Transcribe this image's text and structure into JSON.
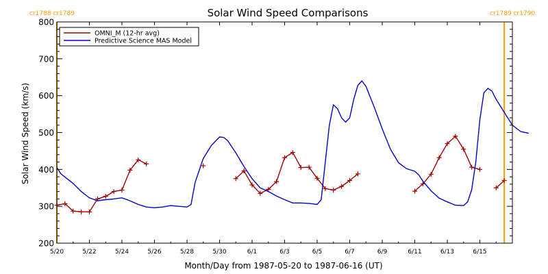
{
  "chart_data": {
    "type": "line",
    "title": "Solar Wind Speed Comparisons",
    "xlabel": "Month/Day from 1987-05-20 to 1987-06-16 (UT)",
    "ylabel": "Solar Wind Speed (km/s)",
    "x_unit": "date",
    "xlim": [
      "1987-05-20",
      "1987-06-17"
    ],
    "ylim": [
      200,
      800
    ],
    "x_ticks": [
      {
        "label": "5/20",
        "date": "1987-05-20"
      },
      {
        "label": "5/22",
        "date": "1987-05-22"
      },
      {
        "label": "5/24",
        "date": "1987-05-24"
      },
      {
        "label": "5/26",
        "date": "1987-05-26"
      },
      {
        "label": "5/28",
        "date": "1987-05-28"
      },
      {
        "label": "5/30",
        "date": "1987-05-30"
      },
      {
        "label": "6/1",
        "date": "1987-06-01"
      },
      {
        "label": "6/3",
        "date": "1987-06-03"
      },
      {
        "label": "6/5",
        "date": "1987-06-05"
      },
      {
        "label": "6/7",
        "date": "1987-06-07"
      },
      {
        "label": "6/9",
        "date": "1987-06-09"
      },
      {
        "label": "6/11",
        "date": "1987-06-11"
      },
      {
        "label": "6/13",
        "date": "1987-06-13"
      },
      {
        "label": "6/15",
        "date": "1987-06-15"
      }
    ],
    "y_ticks": [
      200,
      300,
      400,
      500,
      600,
      700,
      800
    ],
    "legend_position": "top-left",
    "grid": false,
    "carrington_markers": [
      {
        "date": "1987-05-20T00:00",
        "label": "cr1788 cr1789",
        "color": "#ff9900"
      },
      {
        "date": "1987-06-16T12:00",
        "label": "cr1789 cr1790",
        "color": "#ff9900"
      }
    ],
    "series": [
      {
        "name": "OMNI_M (12-hr avg)",
        "color": "#a00000",
        "style": "line-with-plus-markers",
        "segments": [
          [
            [
              "1987-05-20T00:00",
              303
            ],
            [
              "1987-05-20T12:00",
              307
            ],
            [
              "1987-05-21T00:00",
              287
            ],
            [
              "1987-05-21T12:00",
              285
            ],
            [
              "1987-05-22T00:00",
              285
            ],
            [
              "1987-05-22T12:00",
              320
            ],
            [
              "1987-05-23T00:00",
              327
            ],
            [
              "1987-05-23T12:00",
              340
            ],
            [
              "1987-05-24T00:00",
              344
            ],
            [
              "1987-05-24T12:00",
              398
            ],
            [
              "1987-05-25T00:00",
              426
            ],
            [
              "1987-05-25T12:00",
              415
            ]
          ],
          [
            [
              "1987-05-29T00:00",
              410
            ]
          ],
          [
            [
              "1987-05-31T00:00",
              375
            ],
            [
              "1987-05-31T12:00",
              396
            ],
            [
              "1987-06-01T00:00",
              358
            ],
            [
              "1987-06-01T12:00",
              335
            ],
            [
              "1987-06-02T00:00",
              346
            ],
            [
              "1987-06-02T12:00",
              367
            ],
            [
              "1987-06-03T00:00",
              432
            ],
            [
              "1987-06-03T12:00",
              446
            ],
            [
              "1987-06-04T00:00",
              405
            ],
            [
              "1987-06-04T12:00",
              406
            ],
            [
              "1987-06-05T00:00",
              376
            ],
            [
              "1987-06-05T12:00",
              348
            ],
            [
              "1987-06-06T00:00",
              344
            ],
            [
              "1987-06-06T12:00",
              354
            ],
            [
              "1987-06-07T00:00",
              370
            ],
            [
              "1987-06-07T12:00",
              388
            ]
          ],
          [
            [
              "1987-06-11T00:00",
              341
            ],
            [
              "1987-06-11T12:00",
              361
            ],
            [
              "1987-06-12T00:00",
              387
            ],
            [
              "1987-06-12T12:00",
              432
            ],
            [
              "1987-06-13T00:00",
              470
            ],
            [
              "1987-06-13T12:00",
              490
            ],
            [
              "1987-06-14T00:00",
              455
            ],
            [
              "1987-06-14T12:00",
              406
            ],
            [
              "1987-06-15T00:00",
              400
            ]
          ],
          [
            [
              "1987-06-16T00:00",
              350
            ],
            [
              "1987-06-16T12:00",
              370
            ]
          ]
        ]
      },
      {
        "name": "Predictive Science MAS Model",
        "color": "#0000cc",
        "style": "line",
        "segments": [
          [
            [
              "1987-05-20T00:00",
              405
            ],
            [
              "1987-05-20T06:00",
              388
            ],
            [
              "1987-05-21T00:00",
              362
            ],
            [
              "1987-05-21T12:00",
              340
            ],
            [
              "1987-05-22T00:00",
              323
            ],
            [
              "1987-05-22T12:00",
              315
            ],
            [
              "1987-05-23T00:00",
              318
            ],
            [
              "1987-05-23T12:00",
              320
            ],
            [
              "1987-05-24T00:00",
              323
            ],
            [
              "1987-05-24T12:00",
              315
            ],
            [
              "1987-05-25T00:00",
              305
            ],
            [
              "1987-05-25T12:00",
              298
            ],
            [
              "1987-05-26T00:00",
              296
            ],
            [
              "1987-05-26T12:00",
              298
            ],
            [
              "1987-05-27T00:00",
              302
            ],
            [
              "1987-05-27T12:00",
              300
            ],
            [
              "1987-05-28T00:00",
              298
            ],
            [
              "1987-05-28T06:00",
              305
            ],
            [
              "1987-05-28T12:00",
              365
            ],
            [
              "1987-05-29T00:00",
              430
            ],
            [
              "1987-05-29T12:00",
              465
            ],
            [
              "1987-05-30T00:00",
              488
            ],
            [
              "1987-05-30T06:00",
              487
            ],
            [
              "1987-05-30T12:00",
              478
            ],
            [
              "1987-05-31T00:00",
              445
            ],
            [
              "1987-05-31T12:00",
              408
            ],
            [
              "1987-06-01T00:00",
              375
            ],
            [
              "1987-06-01T12:00",
              350
            ],
            [
              "1987-06-02T00:00",
              340
            ],
            [
              "1987-06-02T12:00",
              328
            ],
            [
              "1987-06-03T00:00",
              318
            ],
            [
              "1987-06-03T12:00",
              309
            ],
            [
              "1987-06-04T00:00",
              309
            ],
            [
              "1987-06-04T12:00",
              308
            ],
            [
              "1987-06-05T00:00",
              305
            ],
            [
              "1987-06-05T06:00",
              318
            ],
            [
              "1987-06-05T12:00",
              420
            ],
            [
              "1987-06-05T18:00",
              520
            ],
            [
              "1987-06-06T00:00",
              575
            ],
            [
              "1987-06-06T06:00",
              565
            ],
            [
              "1987-06-06T12:00",
              540
            ],
            [
              "1987-06-06T18:00",
              528
            ],
            [
              "1987-06-07T00:00",
              540
            ],
            [
              "1987-06-07T06:00",
              590
            ],
            [
              "1987-06-07T12:00",
              628
            ],
            [
              "1987-06-07T18:00",
              640
            ],
            [
              "1987-06-08T00:00",
              625
            ],
            [
              "1987-06-08T12:00",
              570
            ],
            [
              "1987-06-09T00:00",
              510
            ],
            [
              "1987-06-09T12:00",
              455
            ],
            [
              "1987-06-10T00:00",
              418
            ],
            [
              "1987-06-10T12:00",
              402
            ],
            [
              "1987-06-11T00:00",
              395
            ],
            [
              "1987-06-11T06:00",
              385
            ],
            [
              "1987-06-11T12:00",
              368
            ],
            [
              "1987-06-12T00:00",
              342
            ],
            [
              "1987-06-12T12:00",
              322
            ],
            [
              "1987-06-13T00:00",
              312
            ],
            [
              "1987-06-13T12:00",
              303
            ],
            [
              "1987-06-14T00:00",
              302
            ],
            [
              "1987-06-14T06:00",
              312
            ],
            [
              "1987-06-14T12:00",
              345
            ],
            [
              "1987-06-14T18:00",
              420
            ],
            [
              "1987-06-15T00:00",
              535
            ],
            [
              "1987-06-15T06:00",
              608
            ],
            [
              "1987-06-15T12:00",
              620
            ],
            [
              "1987-06-15T18:00",
              612
            ],
            [
              "1987-06-16T00:00",
              590
            ],
            [
              "1987-06-16T12:00",
              555
            ],
            [
              "1987-06-17T00:00",
              520
            ],
            [
              "1987-06-17T12:00",
              503
            ],
            [
              "1987-06-18T00:00",
              498
            ]
          ]
        ]
      }
    ]
  }
}
